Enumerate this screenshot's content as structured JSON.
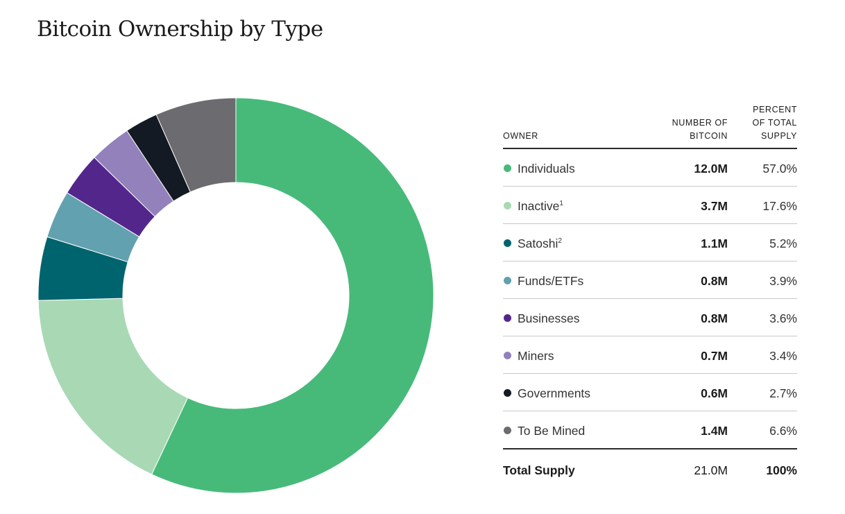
{
  "title": "Bitcoin Ownership by Type",
  "table": {
    "headers": {
      "owner": "OWNER",
      "number_line1": "NUMBER OF",
      "number_line2": "BITCOIN",
      "percent_line1": "PERCENT",
      "percent_line2": "OF TOTAL",
      "percent_line3": "SUPPLY"
    },
    "rows": [
      {
        "name": "Individuals",
        "sup": "",
        "number": "12.0M",
        "percent": "57.0%",
        "color": "#47ba7a"
      },
      {
        "name": "Inactive",
        "sup": "1",
        "number": "3.7M",
        "percent": "17.6%",
        "color": "#a8d9b4"
      },
      {
        "name": "Satoshi",
        "sup": "2",
        "number": "1.1M",
        "percent": "5.2%",
        "color": "#00646e"
      },
      {
        "name": "Funds/ETFs",
        "sup": "",
        "number": "0.8M",
        "percent": "3.9%",
        "color": "#62a1af"
      },
      {
        "name": "Businesses",
        "sup": "",
        "number": "0.8M",
        "percent": "3.6%",
        "color": "#53268c"
      },
      {
        "name": "Miners",
        "sup": "",
        "number": "0.7M",
        "percent": "3.4%",
        "color": "#9281ba"
      },
      {
        "name": "Governments",
        "sup": "",
        "number": "0.6M",
        "percent": "2.7%",
        "color": "#141a23"
      },
      {
        "name": "To Be Mined",
        "sup": "",
        "number": "1.4M",
        "percent": "6.6%",
        "color": "#6c6b70"
      }
    ],
    "total": {
      "label": "Total Supply",
      "number": "21.0M",
      "percent": "100%"
    }
  },
  "chart_data": {
    "type": "pie",
    "variant": "donut",
    "title": "Bitcoin Ownership by Type",
    "categories": [
      "Individuals",
      "Inactive",
      "Satoshi",
      "Funds/ETFs",
      "Businesses",
      "Miners",
      "Governments",
      "To Be Mined"
    ],
    "values": [
      57.0,
      17.6,
      5.2,
      3.9,
      3.6,
      3.4,
      2.7,
      6.6
    ],
    "bitcoin_millions": [
      12.0,
      3.7,
      1.1,
      0.8,
      0.8,
      0.7,
      0.6,
      1.4
    ],
    "colors": [
      "#47ba7a",
      "#a8d9b4",
      "#00646e",
      "#62a1af",
      "#53268c",
      "#9281ba",
      "#141a23",
      "#6c6b70"
    ],
    "start": "top",
    "direction": "clockwise"
  }
}
